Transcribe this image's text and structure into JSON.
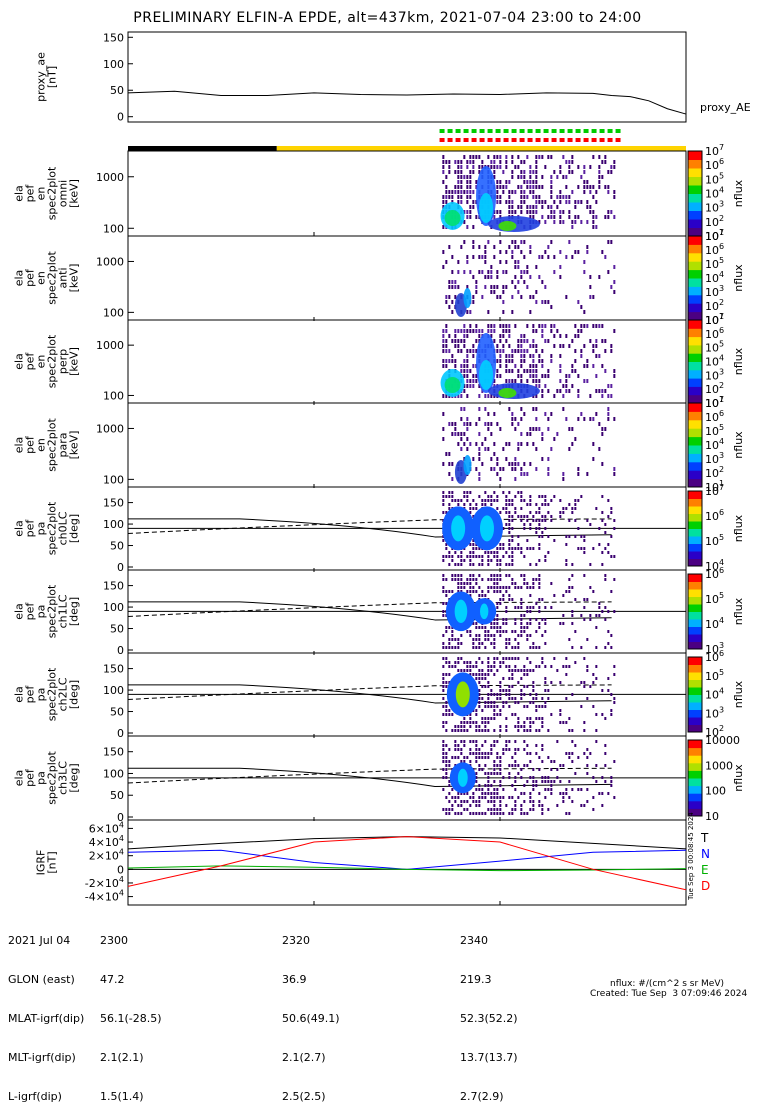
{
  "title": "PRELIMINARY ELFIN-A EPDE, alt=437km, 2021-07-04 23:00 to 24:00",
  "proxy": {
    "ylabel": "proxy_ae\n[nT]",
    "legend": "proxy_AE",
    "yticks": [
      "0",
      "50",
      "100",
      "150"
    ]
  },
  "spec_panels": [
    {
      "ylabel": [
        "ela",
        "pef",
        "en",
        "spec2plot",
        "omni",
        "[keV]"
      ],
      "yticks": [
        "100",
        "1000"
      ],
      "cbar": [
        "10^1",
        "10^2",
        "10^3",
        "10^4",
        "10^5",
        "10^6",
        "10^7"
      ],
      "cbar_label": "nflux"
    },
    {
      "ylabel": [
        "ela",
        "pef",
        "en",
        "spec2plot",
        "anti",
        "[keV]"
      ],
      "yticks": [
        "100",
        "1000"
      ],
      "cbar": [
        "10^1",
        "10^2",
        "10^3",
        "10^4",
        "10^5",
        "10^6",
        "10^7"
      ],
      "cbar_label": "nflux"
    },
    {
      "ylabel": [
        "ela",
        "pef",
        "en",
        "spec2plot",
        "perp",
        "[keV]"
      ],
      "yticks": [
        "100",
        "1000"
      ],
      "cbar": [
        "10^1",
        "10^2",
        "10^3",
        "10^4",
        "10^5",
        "10^6",
        "10^7"
      ],
      "cbar_label": "nflux"
    },
    {
      "ylabel": [
        "ela",
        "pef",
        "en",
        "spec2plot",
        "para",
        "[keV]"
      ],
      "yticks": [
        "100",
        "1000"
      ],
      "cbar": [
        "10^1",
        "10^2",
        "10^3",
        "10^4",
        "10^5",
        "10^6",
        "10^7"
      ],
      "cbar_label": "nflux"
    }
  ],
  "pa_panels": [
    {
      "ylabel": [
        "ela",
        "pef",
        "pa",
        "spec2plot",
        "ch0LC",
        "[deg]"
      ],
      "yticks": [
        "0",
        "50",
        "100",
        "150"
      ],
      "cbar": [
        "10^4",
        "10^5",
        "10^6",
        "10^7"
      ],
      "cbar_label": "nflux"
    },
    {
      "ylabel": [
        "ela",
        "pef",
        "pa",
        "spec2plot",
        "ch1LC",
        "[deg]"
      ],
      "yticks": [
        "0",
        "50",
        "100",
        "150"
      ],
      "cbar": [
        "10^3",
        "10^4",
        "10^5",
        "10^6"
      ],
      "cbar_label": "nflux"
    },
    {
      "ylabel": [
        "ela",
        "pef",
        "pa",
        "spec2plot",
        "ch2LC",
        "[deg]"
      ],
      "yticks": [
        "0",
        "50",
        "100",
        "150"
      ],
      "cbar": [
        "10^2",
        "10^3",
        "10^4",
        "10^5",
        "10^6"
      ],
      "cbar_label": "nflux"
    },
    {
      "ylabel": [
        "ela",
        "pef",
        "pa",
        "spec2plot",
        "ch3LC",
        "[deg]"
      ],
      "yticks": [
        "0",
        "50",
        "100",
        "150"
      ],
      "cbar": [
        "10",
        "100",
        "1000",
        "10000"
      ],
      "cbar_label": "nflux"
    }
  ],
  "igrf": {
    "ylabel": "IGRF\n[nT]",
    "yticks": [
      "-4×10^4",
      "-2×10^4",
      "0",
      "2×10^4",
      "4×10^4",
      "6×10^4"
    ],
    "legend": [
      "T",
      "N",
      "E",
      "D"
    ],
    "colors": [
      "#000000",
      "#0000ff",
      "#00b000",
      "#ff0000"
    ],
    "side_stamp": "Tue Sep  3 00:08:45 2024"
  },
  "footer": {
    "rows": [
      [
        "2021 Jul 04",
        "2300",
        "2320",
        "2340"
      ],
      [
        "GLON (east)",
        "47.2",
        "36.9",
        "219.3"
      ],
      [
        "MLAT-igrf(dip)",
        "56.1(-28.5)",
        "50.6(49.1)",
        "52.3(52.2)"
      ],
      [
        "MLT-igrf(dip)",
        "2.1(2.1)",
        "2.1(2.7)",
        "13.7(13.7)"
      ],
      [
        "L-igrf(dip)",
        "1.5(1.4)",
        "2.5(2.5)",
        "2.7(2.9)"
      ]
    ],
    "units_note": "nflux: #/(cm^2 s sr MeV)",
    "created": "Created: Tue Sep  3 07:09:46 2024"
  },
  "chart_data": {
    "type": "spectrogram",
    "time_range": [
      "2021-07-04 23:00",
      "2021-07-05 00:00"
    ],
    "xticks": [
      "2300",
      "2320",
      "2340"
    ],
    "proxy_AE": {
      "x_min": [
        0,
        5,
        10,
        15,
        20,
        25,
        30,
        35,
        40,
        45,
        50,
        52,
        54,
        56,
        58,
        60
      ],
      "y": [
        45,
        48,
        40,
        40,
        45,
        42,
        41,
        43,
        42,
        45,
        44,
        40,
        38,
        30,
        15,
        5
      ]
    },
    "igrf_components": {
      "x_min": [
        0,
        10,
        20,
        30,
        40,
        50,
        60
      ],
      "T": [
        30000,
        38000,
        45000,
        48000,
        46000,
        38000,
        30000
      ],
      "N": [
        25000,
        28000,
        10000,
        0,
        12000,
        25000,
        28000
      ],
      "E": [
        2000,
        5000,
        3000,
        0,
        -2000,
        -1000,
        1000
      ],
      "D": [
        -25000,
        5000,
        40000,
        48000,
        40000,
        0,
        -30000
      ]
    },
    "science_interval_min": [
      33.5,
      52.5
    ]
  }
}
